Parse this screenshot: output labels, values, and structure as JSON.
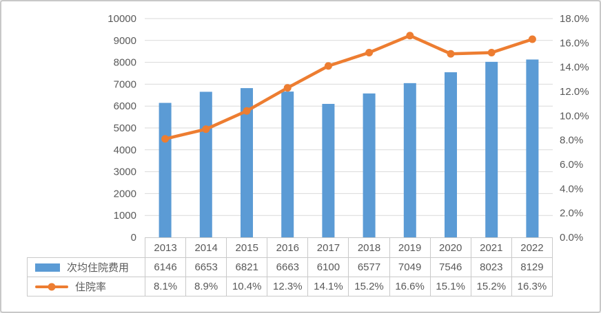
{
  "frame": {
    "background": "#FFFFFF",
    "border_color": "#C8C8C8"
  },
  "chart_data": {
    "type": "combo-bar-line",
    "title": "",
    "categories": [
      "2013",
      "2014",
      "2015",
      "2016",
      "2017",
      "2018",
      "2019",
      "2020",
      "2021",
      "2022"
    ],
    "series": [
      {
        "name": "次均住院费用",
        "chart": "bar",
        "axis": "left",
        "color": "#5B9BD5",
        "values": [
          6146,
          6653,
          6821,
          6663,
          6100,
          6577,
          7049,
          7546,
          8023,
          8129
        ],
        "display_values": [
          "6146",
          "6653",
          "6821",
          "6663",
          "6100",
          "6577",
          "7049",
          "7546",
          "8023",
          "8129"
        ]
      },
      {
        "name": "住院率",
        "chart": "line",
        "axis": "right",
        "color": "#ED7D31",
        "values": [
          8.1,
          8.9,
          10.4,
          12.3,
          14.1,
          15.2,
          16.6,
          15.1,
          15.2,
          16.3
        ],
        "display_values": [
          "8.1%",
          "8.9%",
          "10.4%",
          "12.3%",
          "14.1%",
          "15.2%",
          "16.6%",
          "15.1%",
          "15.2%",
          "16.3%"
        ]
      }
    ],
    "left_axis": {
      "min": 0,
      "max": 10000,
      "step": 1000,
      "tick_labels": [
        "0",
        "1000",
        "2000",
        "3000",
        "4000",
        "5000",
        "6000",
        "7000",
        "8000",
        "9000",
        "10000"
      ]
    },
    "right_axis": {
      "min": 0,
      "max": 18,
      "step": 2,
      "tick_labels": [
        "0.0%",
        "2.0%",
        "4.0%",
        "6.0%",
        "8.0%",
        "10.0%",
        "12.0%",
        "14.0%",
        "16.0%",
        "18.0%"
      ]
    },
    "gridlines": {
      "on": true,
      "color": "#D9D9D9"
    },
    "legend_position": "data-table-left",
    "text_color": "#595959",
    "table_border_color": "#C9C9C9"
  }
}
